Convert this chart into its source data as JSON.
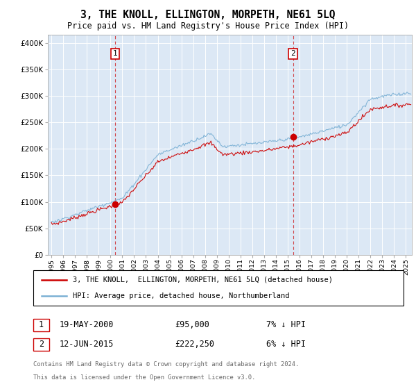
{
  "title": "3, THE KNOLL, ELLINGTON, MORPETH, NE61 5LQ",
  "subtitle": "Price paid vs. HM Land Registry's House Price Index (HPI)",
  "legend_line1": "3, THE KNOLL,  ELLINGTON, MORPETH, NE61 5LQ (detached house)",
  "legend_line2": "HPI: Average price, detached house, Northumberland",
  "annotation1": {
    "label": "1",
    "date": "19-MAY-2000",
    "price": "£95,000",
    "pct": "7% ↓ HPI",
    "x_year": 2000.38
  },
  "annotation2": {
    "label": "2",
    "date": "12-JUN-2015",
    "price": "£222,250",
    "pct": "6% ↓ HPI",
    "x_year": 2015.44
  },
  "footer1": "Contains HM Land Registry data © Crown copyright and database right 2024.",
  "footer2": "This data is licensed under the Open Government Licence v3.0.",
  "red_color": "#cc0000",
  "blue_color": "#7ab0d4",
  "background_color": "#dce8f5",
  "yticks": [
    0,
    50000,
    100000,
    150000,
    200000,
    250000,
    300000,
    350000,
    400000
  ],
  "ylim": [
    0,
    415000
  ],
  "xlim": [
    1994.7,
    2025.5
  ],
  "sale1_x": 2000.38,
  "sale1_y": 95000,
  "sale2_x": 2015.44,
  "sale2_y": 222250
}
